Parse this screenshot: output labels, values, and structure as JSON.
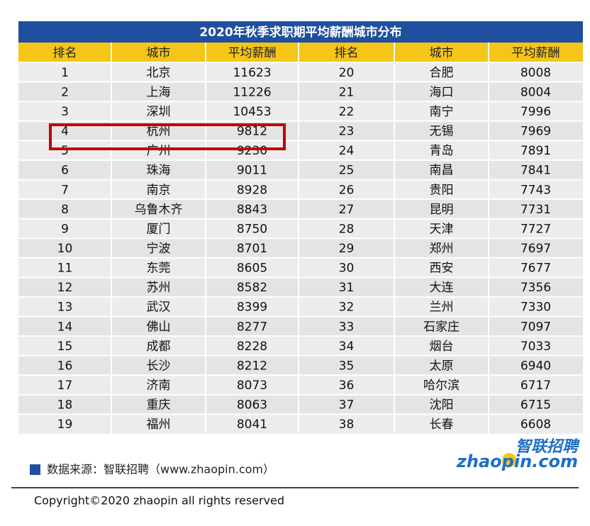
{
  "header": {
    "title": "2020年秋季求职期平均薪酬城市分布"
  },
  "table": {
    "columns": [
      "排名",
      "城市",
      "平均薪酬",
      "排名",
      "城市",
      "平均薪酬"
    ],
    "rows": [
      [
        "1",
        "北京",
        "11623",
        "20",
        "合肥",
        "8008"
      ],
      [
        "2",
        "上海",
        "11226",
        "21",
        "海口",
        "8004"
      ],
      [
        "3",
        "深圳",
        "10453",
        "22",
        "南宁",
        "7996"
      ],
      [
        "4",
        "杭州",
        "9812",
        "23",
        "无锡",
        "7969"
      ],
      [
        "5",
        "广州",
        "9230",
        "24",
        "青岛",
        "7891"
      ],
      [
        "6",
        "珠海",
        "9011",
        "25",
        "南昌",
        "7841"
      ],
      [
        "7",
        "南京",
        "8928",
        "26",
        "贵阳",
        "7743"
      ],
      [
        "8",
        "乌鲁木齐",
        "8843",
        "27",
        "昆明",
        "7731"
      ],
      [
        "9",
        "厦门",
        "8750",
        "28",
        "天津",
        "7727"
      ],
      [
        "10",
        "宁波",
        "8701",
        "29",
        "郑州",
        "7697"
      ],
      [
        "11",
        "东莞",
        "8605",
        "30",
        "西安",
        "7677"
      ],
      [
        "12",
        "苏州",
        "8582",
        "31",
        "大连",
        "7356"
      ],
      [
        "13",
        "武汉",
        "8399",
        "32",
        "兰州",
        "7330"
      ],
      [
        "14",
        "佛山",
        "8277",
        "33",
        "石家庄",
        "7097"
      ],
      [
        "15",
        "成都",
        "8228",
        "34",
        "烟台",
        "7033"
      ],
      [
        "16",
        "长沙",
        "8212",
        "35",
        "太原",
        "6940"
      ],
      [
        "17",
        "济南",
        "8073",
        "36",
        "哈尔滨",
        "6717"
      ],
      [
        "18",
        "重庆",
        "8063",
        "37",
        "沈阳",
        "6715"
      ],
      [
        "19",
        "福州",
        "8041",
        "38",
        "长春",
        "6608"
      ]
    ]
  },
  "footer": {
    "source": "数据来源：智联招聘（www.zhaopin.com）",
    "logo_cn": "智联招聘",
    "logo_en": "zhaopin.com",
    "copyright": "Copyright©2020 zhaopin all rights reserved"
  }
}
